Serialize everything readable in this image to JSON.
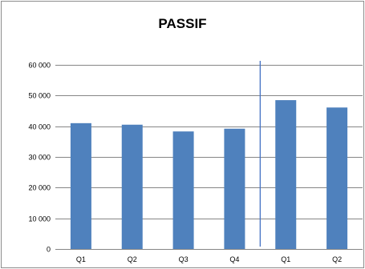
{
  "chart_data": {
    "type": "bar",
    "title": "PASSIF",
    "categories": [
      "Q1",
      "Q2",
      "Q3",
      "Q4",
      "Q1",
      "Q2"
    ],
    "values": [
      41000,
      40500,
      38300,
      39200,
      48500,
      46100
    ],
    "ylim": [
      0,
      60000
    ],
    "yticks": [
      0,
      10000,
      20000,
      30000,
      40000,
      50000,
      60000
    ],
    "ytick_labels": [
      "0",
      "10 000",
      "20 000",
      "30 000",
      "40 000",
      "50 000",
      "60 000"
    ],
    "xlabel": "",
    "ylabel": "",
    "grid": true,
    "bar_color": "#4F81BD",
    "separator_color": "#4472C4",
    "gridline_color": "#868686"
  }
}
